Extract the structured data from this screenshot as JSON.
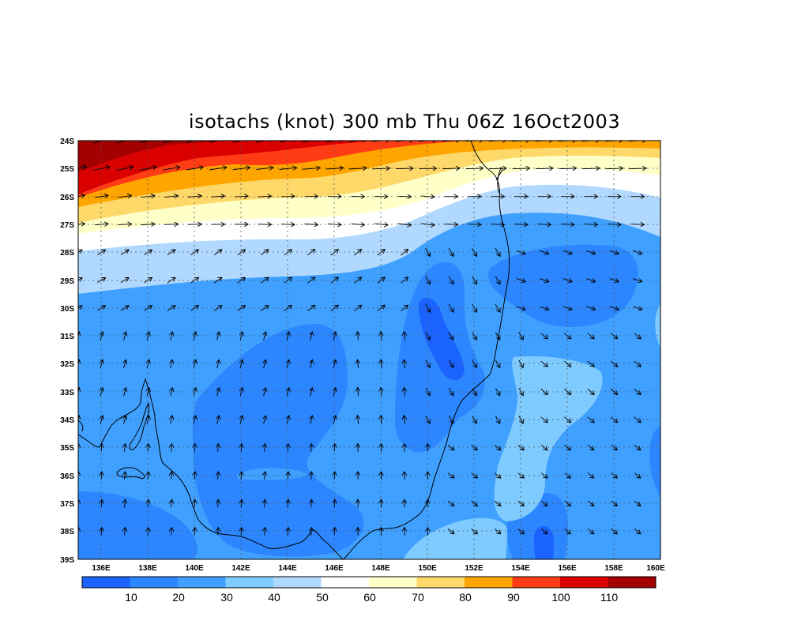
{
  "title": "isotachs (knot) 300 mb Thu 06Z 16Oct2003",
  "lat_labels": [
    "24S",
    "25S",
    "26S",
    "27S",
    "28S",
    "29S",
    "30S",
    "31S",
    "32S",
    "33S",
    "34S",
    "35S",
    "36S",
    "37S",
    "38S",
    "39S"
  ],
  "lon_labels": [
    "136E",
    "138E",
    "140E",
    "142E",
    "144E",
    "146E",
    "148E",
    "150E",
    "152E",
    "154E",
    "156E",
    "158E",
    "160E"
  ],
  "colorbar": {
    "labels": [
      "10",
      "20",
      "30",
      "40",
      "50",
      "60",
      "70",
      "80",
      "90",
      "100",
      "110"
    ],
    "colors": [
      "#1a63ff",
      "#2c86ff",
      "#3fa0ff",
      "#7fcbff",
      "#b1d9ff",
      "#ffffff",
      "#ffffc8",
      "#ffd86a",
      "#ffa500",
      "#ff3c14",
      "#db0000",
      "#a50000"
    ]
  },
  "field_colors": {
    "c10": "#1a63ff",
    "c20": "#2c86ff",
    "c30": "#3fa0ff",
    "c40": "#7fcbff",
    "c50": "#b1d9ff",
    "c60": "#ffffff",
    "c70": "#ffffc8",
    "c80": "#ffd86a",
    "c90": "#ffa500",
    "c100": "#ff3c14",
    "c110": "#db0000",
    "c120": "#a50000"
  }
}
